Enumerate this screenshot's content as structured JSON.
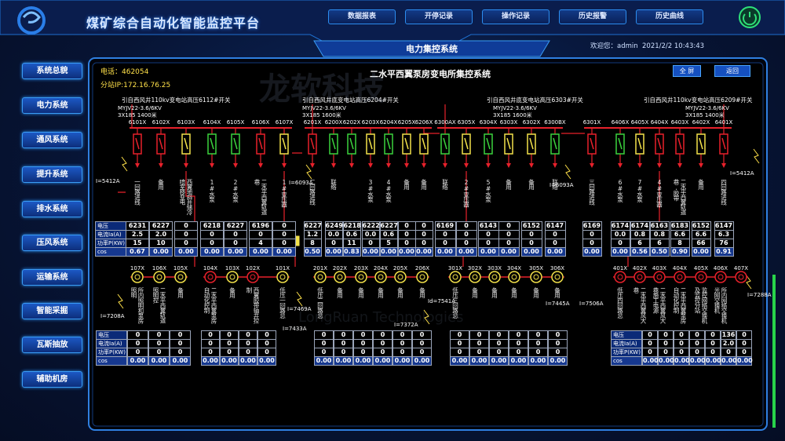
{
  "header": {
    "title": "煤矿综合自动化智能监控平台",
    "nav": [
      "数据报表",
      "开停记录",
      "操作记录",
      "历史报警",
      "历史曲线"
    ],
    "section_title": "电力集控系统",
    "welcome": "欢迎您：admin",
    "datetime": "2021/2/2  10:43:43"
  },
  "sidebar": [
    "系统总貌",
    "电力系统",
    "通风系统",
    "提升系统",
    "排水系统",
    "压风系统",
    "运输系统",
    "智能采掘",
    "瓦斯抽放",
    "辅助机房"
  ],
  "panel": {
    "phone": "电话：462054",
    "ip": "分站IP:172.16.76.25",
    "title": "二水平西翼泵房变电所集控系统",
    "buttons": [
      "全 屏",
      "返回"
    ]
  },
  "watermark": [
    "龙软科技",
    "LongRuan Technologies"
  ],
  "row_labels": [
    "电压Uab(V)",
    "电流Ia(A)",
    "功率P(KW)",
    "cos"
  ],
  "hv": {
    "feeders": [
      {
        "source": "引自西风井110kv变电站高压6112#开关",
        "cable": "MYJV22-3.6/6KV",
        "spec": "3X185  1400米"
      },
      {
        "source": "引自西风井底变电站高压6204#开关",
        "cable": "MYJV22-3.6/6KV",
        "spec": "3X185  1600米"
      },
      {
        "source": "引自西风井底变电站高压6303#开关",
        "cable": "MYJV22-3.6/6KV",
        "spec": "3X185  1600米"
      },
      {
        "source": "引自西风井110kv变电站高压6209#开关",
        "cable": "MYJV22-3.6/6KV",
        "spec": "3X185  1400米"
      }
    ],
    "sections": [
      {
        "switches": [
          {
            "id": "6101X",
            "desc": "一回路进线",
            "color": "#e8212b",
            "readings": [
              "6231",
              "2.5",
              "15",
              "0.67"
            ]
          },
          {
            "id": "6102X",
            "desc": "备用",
            "color": "#e8212b",
            "readings": [
              "6227",
              "2.0",
              "10",
              "0.00"
            ]
          },
          {
            "id": "6103X",
            "desc": "西翼地斜井储冷喷室移变电",
            "color": "#f2e14a",
            "readings": [
              "0",
              "0",
              "0",
              "0.00"
            ]
          },
          {
            "id": "6104X",
            "desc": "1#水泵",
            "color": "#3bd23d",
            "readings": [
              "6218",
              "0",
              "0",
              "0.00"
            ]
          },
          {
            "id": "6105X",
            "desc": "2#水泵",
            "color": "#3bd23d",
            "readings": [
              "6227",
              "0",
              "0",
              "0.00"
            ]
          },
          {
            "id": "6106X",
            "desc": "二水平西翼轨道巷",
            "color": "#e8212b",
            "readings": [
              "6196",
              "0",
              "4",
              "0.00"
            ]
          },
          {
            "id": "6107X",
            "desc": "1#变压器",
            "color": "#f2e14a",
            "readings": [
              "0",
              "0",
              "0",
              "0.00"
            ]
          }
        ]
      },
      {
        "switches": [
          {
            "id": "6201X",
            "desc": "二回路进线",
            "color": "#e8212b",
            "readings": [
              "6227",
              "1.2",
              "8",
              "0.50"
            ]
          },
          {
            "id": "6200X",
            "desc": "联络",
            "color": "#3bd23d",
            "readings": [
              "6249",
              "0.0",
              "0",
              "0.00"
            ]
          },
          {
            "id": "6202X",
            "desc": null,
            "color": "#3bd23d",
            "readings": [
              "6218",
              "0.6",
              "11",
              "0.83"
            ]
          },
          {
            "id": "6203X",
            "desc": "3#水泵",
            "color": "#f2e14a",
            "readings": [
              "6222",
              "0.0",
              "0",
              "0.00"
            ]
          },
          {
            "id": "6204X",
            "desc": "4#水泵",
            "color": "#3bd23d",
            "readings": [
              "6227",
              "0.6",
              "5",
              "0.00"
            ]
          },
          {
            "id": "6205X",
            "desc": "备用",
            "color": "#f2e14a",
            "readings": [
              "0",
              "0",
              "0",
              "0.00"
            ]
          },
          {
            "id": "6206X",
            "desc": "备用",
            "color": "#f2e14a",
            "readings": [
              "0",
              "0",
              "0",
              "0.00"
            ]
          }
        ]
      },
      {
        "switches": [
          {
            "id": "6300AX",
            "desc": "联络",
            "color": "#3bd23d",
            "readings": [
              "6169",
              "0",
              "0",
              "0.00"
            ]
          },
          {
            "id": "6305X",
            "desc": "2#变压器",
            "color": "#f2e14a",
            "readings": [
              "0",
              "0",
              "0",
              "0.00"
            ]
          },
          {
            "id": "6304X",
            "desc": "5#水泵",
            "color": "#3bd23d",
            "readings": [
              "6143",
              "0",
              "0",
              "0.00"
            ]
          },
          {
            "id": "6303X",
            "desc": "备用",
            "color": "#f2e14a",
            "readings": [
              "0",
              "0",
              "0",
              "0.00"
            ]
          },
          {
            "id": "6302X",
            "desc": "备用",
            "color": "#f2e14a",
            "readings": [
              "6152",
              "0",
              "0",
              "0.00"
            ]
          },
          {
            "id": "6300BX",
            "desc": "联络",
            "color": "#3bd23d",
            "readings": [
              "6147",
              "0",
              "0",
              "0.00"
            ]
          }
        ]
      },
      {
        "switches": [
          {
            "id": "6301X",
            "desc": "三回路进线",
            "color": "#e8212b",
            "readings": [
              "6169",
              "0",
              "0",
              "0.00"
            ]
          },
          {
            "id": "6406X",
            "desc": "6#水泵",
            "color": "#3bd23d",
            "readings": [
              "6174",
              "0.0",
              "0",
              "0.00"
            ]
          },
          {
            "id": "6405X",
            "desc": "7#水泵",
            "color": "#f2e14a",
            "readings": [
              "6174",
              "0.8",
              "6",
              "0.56"
            ]
          },
          {
            "id": "6404X",
            "desc": "4#变压器",
            "color": "#e8212b",
            "readings": [
              "6163",
              "0.8",
              "6",
              "0.50"
            ]
          },
          {
            "id": "6403X",
            "desc": "二水平西翼轨道巷,胶带",
            "color": "#e8212b",
            "readings": [
              "6183",
              "6.6",
              "8",
              "0.90"
            ]
          },
          {
            "id": "6402X",
            "desc": "备用",
            "color": "#f2e14a",
            "readings": [
              "6152",
              "6.6",
              "66",
              "0.00"
            ]
          },
          {
            "id": "6401X",
            "desc": "四回路进线",
            "color": "#e8212b",
            "readings": [
              "6147",
              "6.3",
              "76",
              "0.91"
            ]
          }
        ]
      }
    ],
    "currents": [
      "I=5412A",
      "I=6093A",
      "I=6093A",
      "I=5412A"
    ]
  },
  "lv": {
    "groups": [
      {
        "switches": [
          {
            "id": "107X",
            "desc": "所内照明和泵房照明",
            "color": "#f2e14a",
            "readings": [
              "0",
              "0",
              "0",
              "0.00"
            ]
          },
          {
            "id": "106X",
            "desc": "二水平西翼轨道照明控",
            "color": "#f2e14a",
            "readings": [
              "0",
              "0",
              "0",
              "0.00"
            ]
          },
          {
            "id": "105X",
            "desc": "备用",
            "color": "#f2e14a",
            "readings": [
              "0",
              "0",
              "0",
              "0.00"
            ]
          }
        ]
      },
      {
        "switches": [
          {
            "id": "104X",
            "desc": "二水平西翼泵房自动化控制",
            "color": "#e8212b",
            "readings": [
              "0",
              "0",
              "0",
              "0.00"
            ]
          },
          {
            "id": "103X",
            "desc": "备用",
            "color": "#f2e14a",
            "readings": [
              "0",
              "0",
              "0",
              "0.00"
            ]
          },
          {
            "id": "102X",
            "desc": "西翼胶带轴井控制",
            "color": "#e8212b",
            "readings": [
              "0",
              "0",
              "0",
              "0.00"
            ]
          },
          {
            "id": "101X",
            "desc": "低压一回路总",
            "color": "#f2e14a",
            "readings": [
              "0",
              "0",
              "0",
              "0.00"
            ]
          }
        ]
      },
      {
        "switches": [
          {
            "id": "201X",
            "desc": "低压二回路总",
            "color": "#f2e14a",
            "readings": [
              "0",
              "0",
              "0",
              "0.00"
            ]
          },
          {
            "id": "202X",
            "desc": "备用",
            "color": "#f2e14a",
            "readings": [
              "0",
              "0",
              "0",
              "0.00"
            ]
          },
          {
            "id": "203X",
            "desc": "备用",
            "color": "#f2e14a",
            "readings": [
              "0",
              "0",
              "0",
              "0.00"
            ]
          },
          {
            "id": "204X",
            "desc": "备用",
            "color": "#f2e14a",
            "readings": [
              "0",
              "0",
              "0",
              "0.00"
            ]
          },
          {
            "id": "205X",
            "desc": "备用",
            "color": "#f2e14a",
            "readings": [
              "0",
              "0",
              "0",
              "0.00"
            ]
          },
          {
            "id": "206X",
            "desc": "备用",
            "color": "#f2e14a",
            "readings": [
              "0",
              "0",
              "0",
              "0.00"
            ]
          }
        ]
      },
      {
        "switches": [
          {
            "id": "301X",
            "desc": "低压三回路总",
            "color": "#f2e14a",
            "readings": [
              "0",
              "0",
              "0",
              "0.00"
            ]
          },
          {
            "id": "302X",
            "desc": "备用",
            "color": "#f2e14a",
            "readings": [
              "0",
              "0",
              "0",
              "0.00"
            ]
          },
          {
            "id": "303X",
            "desc": "备用",
            "color": "#f2e14a",
            "readings": [
              "0",
              "0",
              "0",
              "0.00"
            ]
          },
          {
            "id": "304X",
            "desc": "备用",
            "color": "#f2e14a",
            "readings": [
              "0",
              "0",
              "0",
              "0.00"
            ]
          },
          {
            "id": "305X",
            "desc": "备用",
            "color": "#f2e14a",
            "readings": [
              "0",
              "0",
              "0",
              "0.00"
            ]
          },
          {
            "id": "306X",
            "desc": "备用",
            "color": "#f2e14a",
            "readings": [
              "0",
              "0",
              "0",
              "0.00"
            ]
          }
        ]
      },
      {
        "switches": [
          {
            "id": "401X",
            "desc": "低压四回路总",
            "color": "#e8212b",
            "readings": [
              "0",
              "0",
              "0",
              "0.00"
            ]
          },
          {
            "id": "402X",
            "desc": "二水平西翼风大巷",
            "color": "#e8212b",
            "readings": [
              "0",
              "0",
              "0",
              "0.00"
            ]
          },
          {
            "id": "403X",
            "desc": "二水平西翼风大巷施工电源",
            "color": "#e8212b",
            "readings": [
              "0",
              "0",
              "0",
              "0.00"
            ]
          },
          {
            "id": "404X",
            "desc": "二水平西翼泵房自动化控制",
            "color": "#e8212b",
            "readings": [
              "0",
              "0",
              "0",
              "0.00"
            ]
          },
          {
            "id": "405X",
            "desc": "监控网络交换机及监控分站",
            "color": "#e8212b",
            "readings": [
              "0",
              "0",
              "0",
              "0.00"
            ]
          },
          {
            "id": "406X",
            "desc": "所内网络交换机光网交换机",
            "color": "#e8212b",
            "readings": [
              "136",
              "2.0",
              "0",
              "0.00"
            ]
          },
          {
            "id": "407X",
            "desc": null,
            "color": "#e8212b",
            "readings": [
              "0",
              "0",
              "0",
              "0.00"
            ]
          }
        ]
      }
    ],
    "currents": [
      "I=7208A",
      "I=7469A",
      "I=7433A",
      "I=7372A",
      "Id=7541A",
      "I=7445A",
      "I=7506A",
      "I=7288A"
    ]
  }
}
